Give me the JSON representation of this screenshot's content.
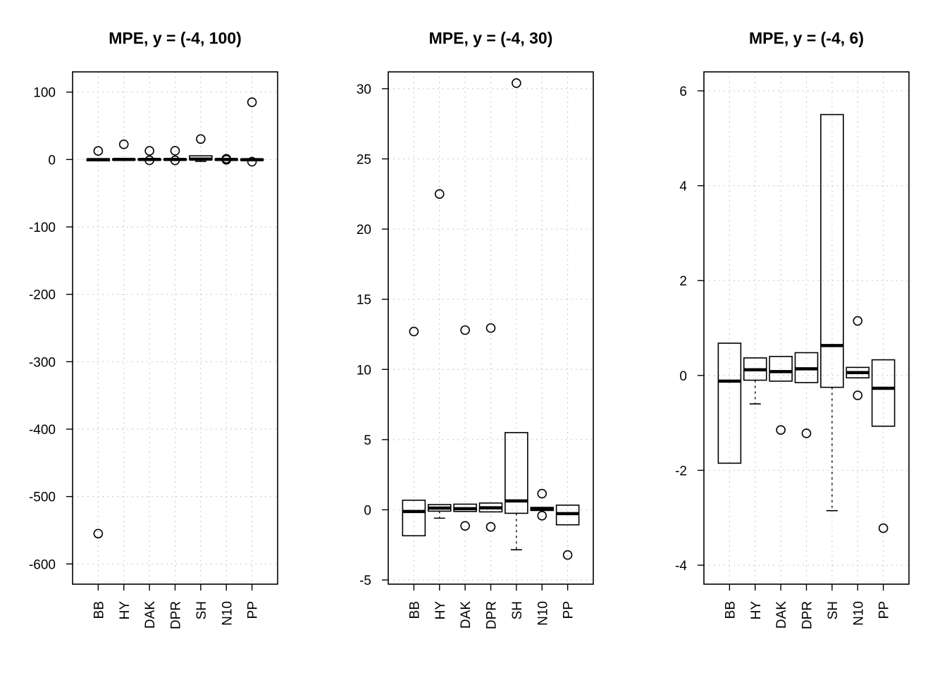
{
  "chart_data": [
    {
      "type": "boxplot",
      "title": "MPE, y = (-4, 100)",
      "ylim": [
        -630,
        130
      ],
      "yticks": [
        -600,
        -500,
        -400,
        -300,
        -200,
        -100,
        0,
        100
      ],
      "ytick_labels": [
        "-600",
        "-500",
        "-400",
        "-300",
        "-200",
        "-100",
        "0",
        "100"
      ],
      "categories": [
        "BB",
        "HY",
        "DAK",
        "DPR",
        "SH",
        "N10",
        "PP"
      ],
      "grid": true,
      "boxes": [
        {
          "label": "BB",
          "lower_whisker": -1.85,
          "q1": -1.85,
          "median": -0.12,
          "q3": 0.68,
          "upper_whisker": 0.68,
          "outliers": [
            12.7,
            -555
          ]
        },
        {
          "label": "HY",
          "lower_whisker": -0.6,
          "q1": -0.1,
          "median": 0.12,
          "q3": 0.37,
          "upper_whisker": 0.37,
          "outliers": [
            22.5
          ]
        },
        {
          "label": "DAK",
          "lower_whisker": -0.12,
          "q1": -0.12,
          "median": 0.08,
          "q3": 0.4,
          "upper_whisker": 0.4,
          "outliers": [
            12.8,
            -1.15
          ]
        },
        {
          "label": "DPR",
          "lower_whisker": -0.15,
          "q1": -0.15,
          "median": 0.14,
          "q3": 0.48,
          "upper_whisker": 0.48,
          "outliers": [
            12.95,
            -1.22
          ]
        },
        {
          "label": "SH",
          "lower_whisker": -2.85,
          "q1": -0.25,
          "median": 0.63,
          "q3": 5.5,
          "upper_whisker": 5.5,
          "outliers": [
            30.4
          ]
        },
        {
          "label": "N10",
          "lower_whisker": -0.05,
          "q1": -0.05,
          "median": 0.06,
          "q3": 0.17,
          "upper_whisker": 0.17,
          "outliers": [
            1.15,
            -0.42
          ]
        },
        {
          "label": "PP",
          "lower_whisker": -1.07,
          "q1": -1.07,
          "median": -0.27,
          "q3": 0.33,
          "upper_whisker": 0.33,
          "outliers": [
            85,
            -3.22
          ]
        }
      ]
    },
    {
      "type": "boxplot",
      "title": "MPE, y = (-4, 30)",
      "ylim": [
        -5.3,
        31.2
      ],
      "yticks": [
        -5,
        0,
        5,
        10,
        15,
        20,
        25,
        30
      ],
      "ytick_labels": [
        "-5",
        "0",
        "5",
        "10",
        "15",
        "20",
        "25",
        "30"
      ],
      "categories": [
        "BB",
        "HY",
        "DAK",
        "DPR",
        "SH",
        "N10",
        "PP"
      ],
      "grid": true,
      "boxes": [
        {
          "label": "BB",
          "lower_whisker": -1.85,
          "q1": -1.85,
          "median": -0.12,
          "q3": 0.68,
          "upper_whisker": 0.68,
          "outliers": [
            12.7
          ]
        },
        {
          "label": "HY",
          "lower_whisker": -0.6,
          "q1": -0.1,
          "median": 0.12,
          "q3": 0.37,
          "upper_whisker": 0.37,
          "outliers": [
            22.5
          ]
        },
        {
          "label": "DAK",
          "lower_whisker": -0.12,
          "q1": -0.12,
          "median": 0.08,
          "q3": 0.4,
          "upper_whisker": 0.4,
          "outliers": [
            12.8,
            -1.15
          ]
        },
        {
          "label": "DPR",
          "lower_whisker": -0.15,
          "q1": -0.15,
          "median": 0.14,
          "q3": 0.48,
          "upper_whisker": 0.48,
          "outliers": [
            12.95,
            -1.22
          ]
        },
        {
          "label": "SH",
          "lower_whisker": -2.85,
          "q1": -0.25,
          "median": 0.63,
          "q3": 5.5,
          "upper_whisker": 5.5,
          "outliers": [
            30.4
          ]
        },
        {
          "label": "N10",
          "lower_whisker": -0.05,
          "q1": -0.05,
          "median": 0.06,
          "q3": 0.17,
          "upper_whisker": 0.17,
          "outliers": [
            1.15,
            -0.42
          ]
        },
        {
          "label": "PP",
          "lower_whisker": -1.07,
          "q1": -1.07,
          "median": -0.27,
          "q3": 0.33,
          "upper_whisker": 0.33,
          "outliers": [
            -3.22
          ]
        }
      ]
    },
    {
      "type": "boxplot",
      "title": "MPE, y = (-4, 6)",
      "ylim": [
        -4.4,
        6.4
      ],
      "yticks": [
        -4,
        -2,
        0,
        2,
        4,
        6
      ],
      "ytick_labels": [
        "-4",
        "-2",
        "0",
        "2",
        "4",
        "6"
      ],
      "categories": [
        "BB",
        "HY",
        "DAK",
        "DPR",
        "SH",
        "N10",
        "PP"
      ],
      "grid": true,
      "boxes": [
        {
          "label": "BB",
          "lower_whisker": -1.85,
          "q1": -1.85,
          "median": -0.12,
          "q3": 0.68,
          "upper_whisker": 0.68,
          "outliers": []
        },
        {
          "label": "HY",
          "lower_whisker": -0.6,
          "q1": -0.1,
          "median": 0.12,
          "q3": 0.37,
          "upper_whisker": 0.37,
          "outliers": []
        },
        {
          "label": "DAK",
          "lower_whisker": -0.12,
          "q1": -0.12,
          "median": 0.08,
          "q3": 0.4,
          "upper_whisker": 0.4,
          "outliers": [
            -1.15
          ]
        },
        {
          "label": "DPR",
          "lower_whisker": -0.15,
          "q1": -0.15,
          "median": 0.14,
          "q3": 0.48,
          "upper_whisker": 0.48,
          "outliers": [
            -1.22
          ]
        },
        {
          "label": "SH",
          "lower_whisker": -2.85,
          "q1": -0.25,
          "median": 0.63,
          "q3": 5.5,
          "upper_whisker": 5.5,
          "outliers": []
        },
        {
          "label": "N10",
          "lower_whisker": -0.05,
          "q1": -0.05,
          "median": 0.06,
          "q3": 0.17,
          "upper_whisker": 0.17,
          "outliers": [
            1.15,
            -0.42
          ]
        },
        {
          "label": "PP",
          "lower_whisker": -1.07,
          "q1": -1.07,
          "median": -0.27,
          "q3": 0.33,
          "upper_whisker": 0.33,
          "outliers": [
            -3.22
          ]
        }
      ]
    }
  ]
}
